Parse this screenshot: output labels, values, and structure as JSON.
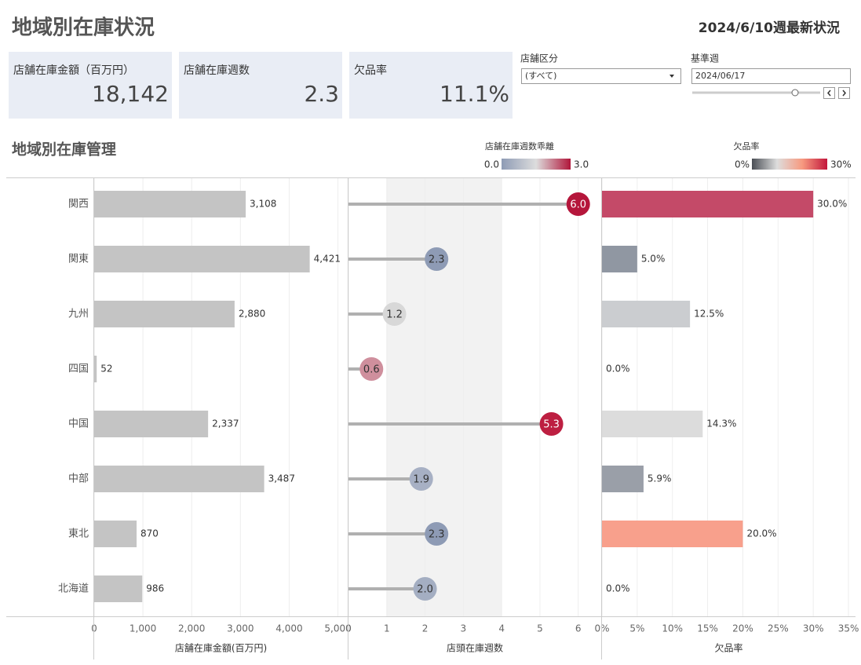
{
  "header": {
    "title": "地域別在庫状況",
    "subtitle": "2024/6/10週最新状況"
  },
  "kpis": [
    {
      "label": "店舗在庫金額（百万円）",
      "value": "18,142"
    },
    {
      "label": "店舗在庫週数",
      "value": "2.3"
    },
    {
      "label": "欠品率",
      "value": "11.1%"
    }
  ],
  "filters": [
    {
      "label": "店舗区分",
      "value": "(すべて)"
    },
    {
      "label": "基準週",
      "value": "2024/06/17"
    }
  ],
  "section_title": "地域別在庫管理",
  "legends": [
    {
      "title": "店舗在庫週数乖離",
      "min": "0.0",
      "max": "3.0",
      "colors": [
        "#8e9bb5",
        "#dddddd",
        "#b0163a"
      ]
    },
    {
      "title": "欠品率",
      "min": "0%",
      "max": "30%",
      "colors": [
        "#4a4e55",
        "#dddddd",
        "#f79a80",
        "#c3173c"
      ]
    }
  ],
  "chart_data": [
    {
      "type": "bar",
      "categories": [
        "関西",
        "関東",
        "九州",
        "四国",
        "中国",
        "中部",
        "東北",
        "北海道"
      ],
      "values": [
        3108,
        4421,
        2880,
        52,
        2337,
        3487,
        870,
        986
      ],
      "value_labels": [
        "3,108",
        "4,421",
        "2,880",
        "52",
        "2,337",
        "3,487",
        "870",
        "986"
      ],
      "color": "#c4c4c4",
      "xlabel": "店舗在庫金額(百万円)",
      "xlim": [
        0,
        5200
      ],
      "xticks": [
        0,
        {
          "value": 1000,
          "label": "1,000"
        },
        {
          "value": 2000,
          "label": "2,000"
        },
        {
          "value": 3000,
          "label": "3,000"
        },
        {
          "value": 4000,
          "label": "4,000"
        },
        {
          "value": 5000,
          "label": "5,000"
        }
      ]
    },
    {
      "type": "lollipop",
      "values": [
        6.0,
        2.3,
        1.2,
        0.6,
        5.3,
        1.9,
        2.3,
        2.0
      ],
      "value_labels": [
        "6.0",
        "2.3",
        "1.2",
        "0.6",
        "5.3",
        "1.9",
        "2.3",
        "2.0"
      ],
      "colors": [
        "#b5163b",
        "#8e9bb5",
        "#d8d8d8",
        "#cf8f9d",
        "#bd1f41",
        "#a7b0c4",
        "#8e9bb5",
        "#a4aec2"
      ],
      "xlabel": "店頭在庫週数",
      "xlim": [
        0,
        6.6
      ],
      "xticks": [
        0,
        1,
        2,
        3,
        4,
        5,
        6
      ],
      "band": [
        1,
        4
      ]
    },
    {
      "type": "bar",
      "values": [
        30.0,
        5.0,
        12.5,
        0.0,
        14.3,
        5.9,
        20.0,
        0.0
      ],
      "value_labels": [
        "30.0%",
        "5.0%",
        "12.5%",
        "0.0%",
        "14.3%",
        "5.9%",
        "20.0%",
        "0.0%"
      ],
      "colors": [
        "#c44a68",
        "#9097a2",
        "#cbcdd0",
        "#dddddd",
        "#dcdcdc",
        "#9a9fa8",
        "#f8a08c",
        "#dddddd"
      ],
      "xlabel": "欠品率",
      "xlim": [
        0,
        36
      ],
      "xticks": [
        {
          "value": 0,
          "label": "0%"
        },
        {
          "value": 5,
          "label": "5%"
        },
        {
          "value": 10,
          "label": "10%"
        },
        {
          "value": 15,
          "label": "15%"
        },
        {
          "value": 20,
          "label": "20%"
        },
        {
          "value": 25,
          "label": "25%"
        },
        {
          "value": 30,
          "label": "30%"
        },
        {
          "value": 35,
          "label": "35%"
        }
      ]
    }
  ]
}
